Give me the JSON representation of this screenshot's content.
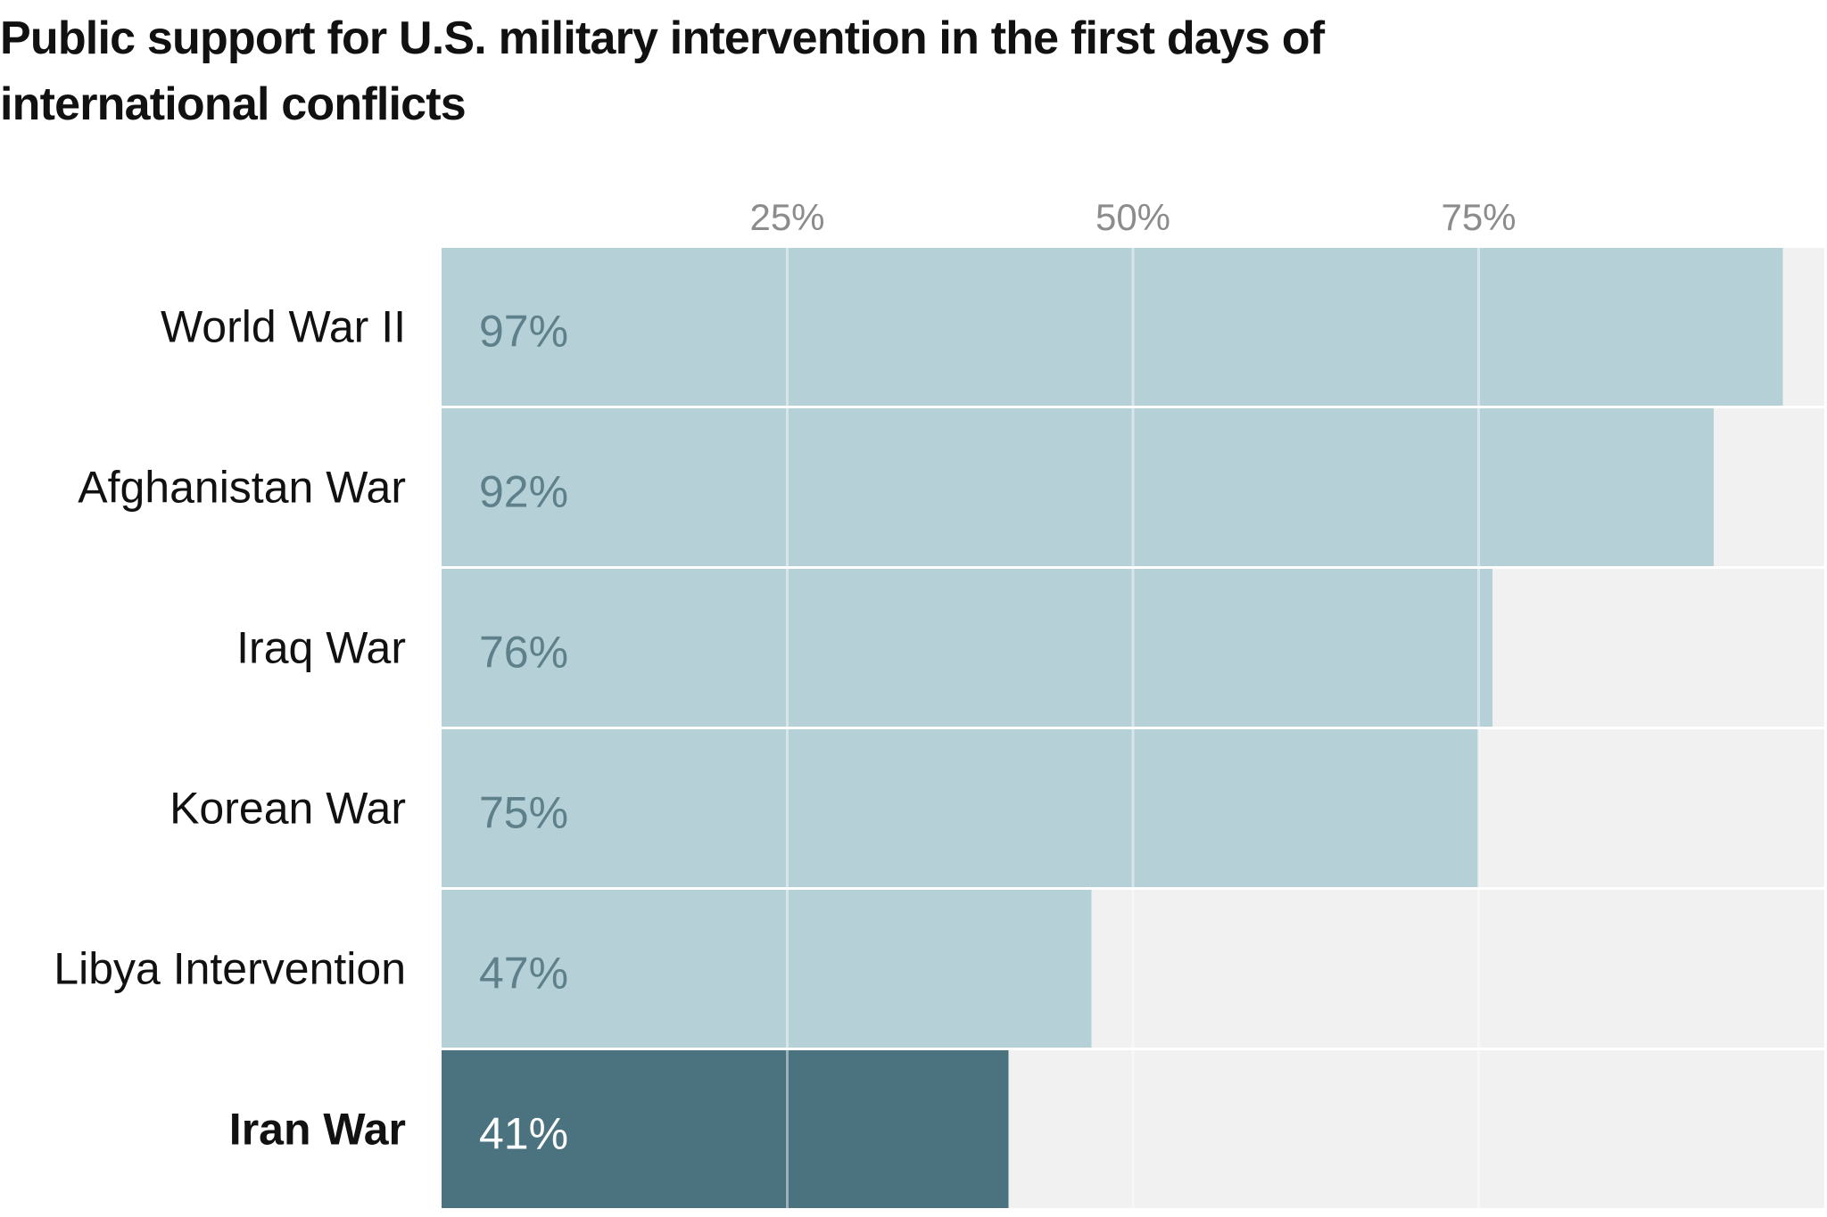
{
  "chart_data": {
    "type": "bar",
    "orientation": "horizontal",
    "title": "Public support for U.S. military intervention in the first days of international conflicts",
    "categories": [
      "World War II",
      "Afghanistan War",
      "Iraq War",
      "Korean War",
      "Libya Intervention",
      "Iran War"
    ],
    "values": [
      97,
      92,
      76,
      75,
      47,
      41
    ],
    "value_labels": [
      "97%",
      "92%",
      "76%",
      "75%",
      "47%",
      "41%"
    ],
    "highlight_category": "Iran War",
    "xlim": [
      0,
      100
    ],
    "x_ticks": [
      25,
      50,
      75
    ],
    "x_tick_labels": [
      "25%",
      "50%",
      "75%"
    ],
    "tick_position": "top",
    "grid": true,
    "legend": "none",
    "colors": {
      "bar": "#b5d0d7",
      "bar_highlight": "#4a727f",
      "track": "#f1f1f1",
      "grid": "#e6eef0"
    }
  }
}
